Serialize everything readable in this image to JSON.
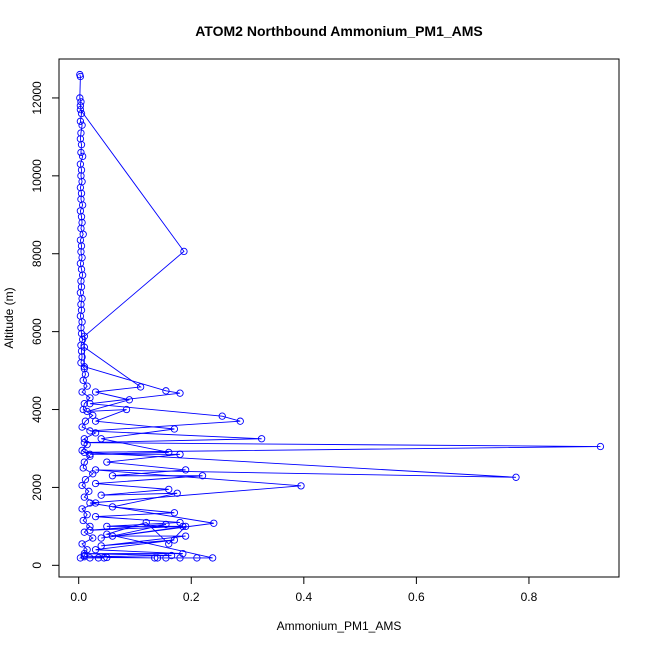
{
  "chart_data": {
    "type": "line",
    "title": "ATOM2 Northbound Ammonium_PM1_AMS",
    "xlabel": "Ammonium_PM1_AMS",
    "ylabel": "Altitude (m)",
    "xlim": [
      -0.035,
      0.96
    ],
    "ylim": [
      -300,
      13000
    ],
    "xticks": [
      "0.0",
      "0.2",
      "0.4",
      "0.6",
      "0.8"
    ],
    "yticks": [
      "0",
      "2000",
      "4000",
      "6000",
      "8000",
      "10000",
      "12000"
    ],
    "series": [
      {
        "color": "#0000ff",
        "marker": "open-circle",
        "points": [
          [
            0.002,
            12600
          ],
          [
            0.003,
            12550
          ],
          [
            0.002,
            12000
          ],
          [
            0.004,
            11900
          ],
          [
            0.003,
            11800
          ],
          [
            0.005,
            11600
          ],
          [
            0.003,
            11400
          ],
          [
            0.006,
            11300
          ],
          [
            0.004,
            11100
          ],
          [
            0.003,
            10950
          ],
          [
            0.005,
            10800
          ],
          [
            0.004,
            10600
          ],
          [
            0.007,
            10500
          ],
          [
            0.003,
            10300
          ],
          [
            0.005,
            10150
          ],
          [
            0.004,
            10000
          ],
          [
            0.006,
            9850
          ],
          [
            0.003,
            9700
          ],
          [
            0.005,
            9550
          ],
          [
            0.004,
            9400
          ],
          [
            0.007,
            9250
          ],
          [
            0.003,
            9100
          ],
          [
            0.005,
            8950
          ],
          [
            0.006,
            8800
          ],
          [
            0.004,
            8650
          ],
          [
            0.008,
            8500
          ],
          [
            0.003,
            8350
          ],
          [
            0.005,
            8200
          ],
          [
            0.004,
            8050
          ],
          [
            0.006,
            7900
          ],
          [
            0.003,
            7750
          ],
          [
            0.005,
            7600
          ],
          [
            0.007,
            7450
          ],
          [
            0.004,
            7300
          ],
          [
            0.005,
            7150
          ],
          [
            0.003,
            7000
          ],
          [
            0.006,
            6850
          ],
          [
            0.004,
            6700
          ],
          [
            0.005,
            6550
          ],
          [
            0.003,
            6400
          ],
          [
            0.006,
            6250
          ],
          [
            0.004,
            6100
          ],
          [
            0.005,
            5950
          ],
          [
            0.007,
            5800
          ],
          [
            0.004,
            5650
          ],
          [
            0.005,
            5500
          ],
          [
            0.006,
            5350
          ],
          [
            0.004,
            5200
          ],
          [
            0.01,
            5050
          ],
          [
            0.012,
            4900
          ],
          [
            0.008,
            4750
          ],
          [
            0.015,
            4600
          ],
          [
            0.006,
            4450
          ],
          [
            0.02,
            4300
          ],
          [
            0.01,
            4150
          ],
          [
            0.008,
            4000
          ],
          [
            0.025,
            3850
          ],
          [
            0.012,
            3700
          ],
          [
            0.006,
            3550
          ],
          [
            0.03,
            3400
          ],
          [
            0.01,
            3250
          ],
          [
            0.015,
            3100
          ],
          [
            0.006,
            2950
          ],
          [
            0.02,
            2800
          ],
          [
            0.01,
            2650
          ],
          [
            0.008,
            2500
          ],
          [
            0.025,
            2350
          ],
          [
            0.012,
            2200
          ],
          [
            0.006,
            2050
          ],
          [
            0.018,
            1900
          ],
          [
            0.01,
            1750
          ],
          [
            0.03,
            1600
          ],
          [
            0.006,
            1450
          ],
          [
            0.015,
            1300
          ],
          [
            0.008,
            1150
          ],
          [
            0.02,
            1000
          ],
          [
            0.01,
            850
          ],
          [
            0.025,
            700
          ],
          [
            0.006,
            550
          ],
          [
            0.015,
            400
          ],
          [
            0.01,
            250
          ],
          [
            0.003,
            190
          ],
          [
            0.02,
            190
          ],
          [
            0.035,
            190
          ],
          [
            0.045,
            190
          ]
        ]
      },
      {
        "color": "#0000ff",
        "marker": "open-circle",
        "points": [
          [
            0.003,
            11700
          ],
          [
            0.187,
            8060
          ],
          [
            0.01,
            5880
          ],
          [
            0.01,
            5100
          ],
          [
            0.155,
            4480
          ],
          [
            0.18,
            4420
          ],
          [
            0.02,
            4150
          ],
          [
            0.255,
            3830
          ],
          [
            0.287,
            3700
          ],
          [
            0.02,
            3450
          ],
          [
            0.325,
            3250
          ],
          [
            0.01,
            3150
          ],
          [
            0.927,
            3050
          ],
          [
            0.01,
            2900
          ],
          [
            0.777,
            2260
          ],
          [
            0.03,
            2450
          ],
          [
            0.395,
            2040
          ],
          [
            0.02,
            1600
          ],
          [
            0.24,
            1080
          ],
          [
            0.04,
            700
          ],
          [
            0.19,
            1000
          ],
          [
            0.16,
            550
          ],
          [
            0.12,
            1100
          ],
          [
            0.05,
            800
          ],
          [
            0.238,
            190
          ],
          [
            0.21,
            190
          ],
          [
            0.18,
            190
          ],
          [
            0.155,
            190
          ],
          [
            0.14,
            190
          ]
        ]
      },
      {
        "color": "#0000ff",
        "marker": "open-circle",
        "points": [
          [
            0.01,
            5600
          ],
          [
            0.11,
            4580
          ],
          [
            0.03,
            4450
          ],
          [
            0.09,
            4250
          ],
          [
            0.015,
            3950
          ],
          [
            0.085,
            4000
          ],
          [
            0.03,
            3700
          ],
          [
            0.17,
            3500
          ],
          [
            0.04,
            3250
          ],
          [
            0.16,
            2900
          ],
          [
            0.02,
            2850
          ],
          [
            0.18,
            2850
          ],
          [
            0.05,
            2650
          ],
          [
            0.19,
            2450
          ],
          [
            0.06,
            2300
          ],
          [
            0.22,
            2300
          ],
          [
            0.03,
            2100
          ],
          [
            0.16,
            1950
          ],
          [
            0.04,
            1800
          ],
          [
            0.175,
            1850
          ],
          [
            0.06,
            1500
          ],
          [
            0.17,
            1350
          ],
          [
            0.03,
            1250
          ],
          [
            0.18,
            1100
          ],
          [
            0.05,
            1000
          ],
          [
            0.185,
            1000
          ],
          [
            0.02,
            900
          ],
          [
            0.155,
            1050
          ],
          [
            0.06,
            750
          ],
          [
            0.19,
            750
          ],
          [
            0.04,
            500
          ],
          [
            0.17,
            650
          ],
          [
            0.03,
            400
          ],
          [
            0.185,
            300
          ],
          [
            0.01,
            300
          ],
          [
            0.165,
            250
          ],
          [
            0.01,
            220
          ],
          [
            0.135,
            190
          ],
          [
            0.05,
            200
          ]
        ]
      }
    ]
  }
}
